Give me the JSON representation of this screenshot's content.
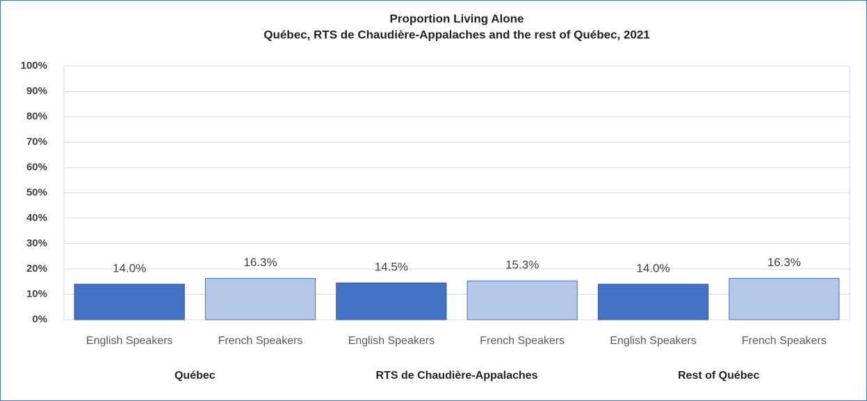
{
  "chart_data": {
    "type": "bar",
    "title": "Proportion Living Alone",
    "subtitle": "Québec, RTS de Chaudière-Appalaches  and the rest of Québec, 2021",
    "categories": [
      "English Speakers",
      "French Speakers",
      "English Speakers",
      "French Speakers",
      "English Speakers",
      "French Speakers"
    ],
    "groups": [
      "Québec",
      "RTS de Chaudière-Appalaches",
      "Rest of Québec"
    ],
    "values": [
      14.0,
      16.3,
      14.5,
      15.3,
      14.0,
      16.3
    ],
    "value_labels": [
      "14.0%",
      "16.3%",
      "14.5%",
      "15.3%",
      "14.0%",
      "16.3%"
    ],
    "colors": [
      "#4472c4",
      "#b4c7e7",
      "#4472c4",
      "#b4c7e7",
      "#4472c4",
      "#b4c7e7"
    ],
    "ylim": [
      0,
      100
    ],
    "yticks": [
      {
        "value": 0,
        "label": "0%"
      },
      {
        "value": 10,
        "label": "10%"
      },
      {
        "value": 20,
        "label": "20%"
      },
      {
        "value": 30,
        "label": "30%"
      },
      {
        "value": 40,
        "label": "40%"
      },
      {
        "value": 50,
        "label": "50%"
      },
      {
        "value": 60,
        "label": "60%"
      },
      {
        "value": 70,
        "label": "70%"
      },
      {
        "value": 80,
        "label": "80%"
      },
      {
        "value": 90,
        "label": "90%"
      },
      {
        "value": 100,
        "label": "100%"
      }
    ],
    "grid": true
  }
}
